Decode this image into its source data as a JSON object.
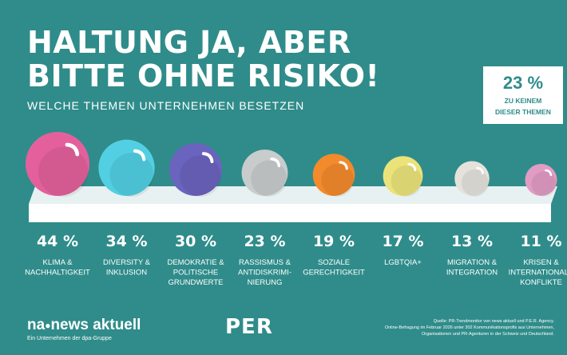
{
  "title_line1": "HALTUNG JA, ABER",
  "title_line2": "BITTE OHNE RISIKO!",
  "subtitle": "WELCHE THEMEN UNTERNEHMEN BESETZEN",
  "callout": {
    "value": "23 %",
    "line1": "ZU KEINEM",
    "line2": "DIESER THEMEN"
  },
  "chart_data": {
    "type": "bar",
    "unit": "%",
    "categories": [
      "KLIMA & NACHHALTIGKEIT",
      "DIVERSITY & INKLUSION",
      "DEMOKRATIE & POLITISCHE GRUNDWERTE",
      "RASSISMUS & ANTIDISKRIMINIERUNG",
      "SOZIALE GERECHTIGKEIT",
      "LGBTQIA+",
      "MIGRATION & INTEGRATION",
      "KRISEN & INTERNATIONALE KONFLIKTE"
    ],
    "label_lines": [
      [
        "KLIMA &",
        "NACHHALTIGKEIT"
      ],
      [
        "DIVERSITY &",
        "INKLUSION"
      ],
      [
        "DEMOKRATIE &",
        "POLITISCHE",
        "GRUNDWERTE"
      ],
      [
        "RASSISMUS &",
        "ANTIDISKRIMI-",
        "NIERUNG"
      ],
      [
        "SOZIALE",
        "GERECHTIGKEIT"
      ],
      [
        "LGBTQIA+"
      ],
      [
        "MIGRATION &",
        "INTEGRATION"
      ],
      [
        "KRISEN &",
        "INTERNATIONALE",
        "KONFLIKTE"
      ]
    ],
    "value_labels": [
      "44 %",
      "34 %",
      "30 %",
      "23 %",
      "19 %",
      "17 %",
      "13 %",
      "11 %"
    ],
    "values": [
      44,
      34,
      30,
      23,
      19,
      17,
      13,
      11
    ],
    "colors": [
      "#e4609c",
      "#52cfe3",
      "#6b64bf",
      "#c8cccc",
      "#f38a2c",
      "#ebe37a",
      "#e5e2dc",
      "#e19cc4"
    ]
  },
  "footer": {
    "brand_left": "na",
    "brand_dot": "●",
    "brand_right": "news aktuell",
    "tagline": "Ein Unternehmen der dpa-Gruppe",
    "per": "PER",
    "source_1": "Quelle: PR-Trendmonitor von news aktuell und P.E.R. Agency.",
    "source_2": "Online-Befragung im Februar 2026 unter 302 Kommunikationsprofis aus Unternehmen,",
    "source_3": "Organisationen und PR-Agenturen in der Schweiz und Deutschland."
  }
}
